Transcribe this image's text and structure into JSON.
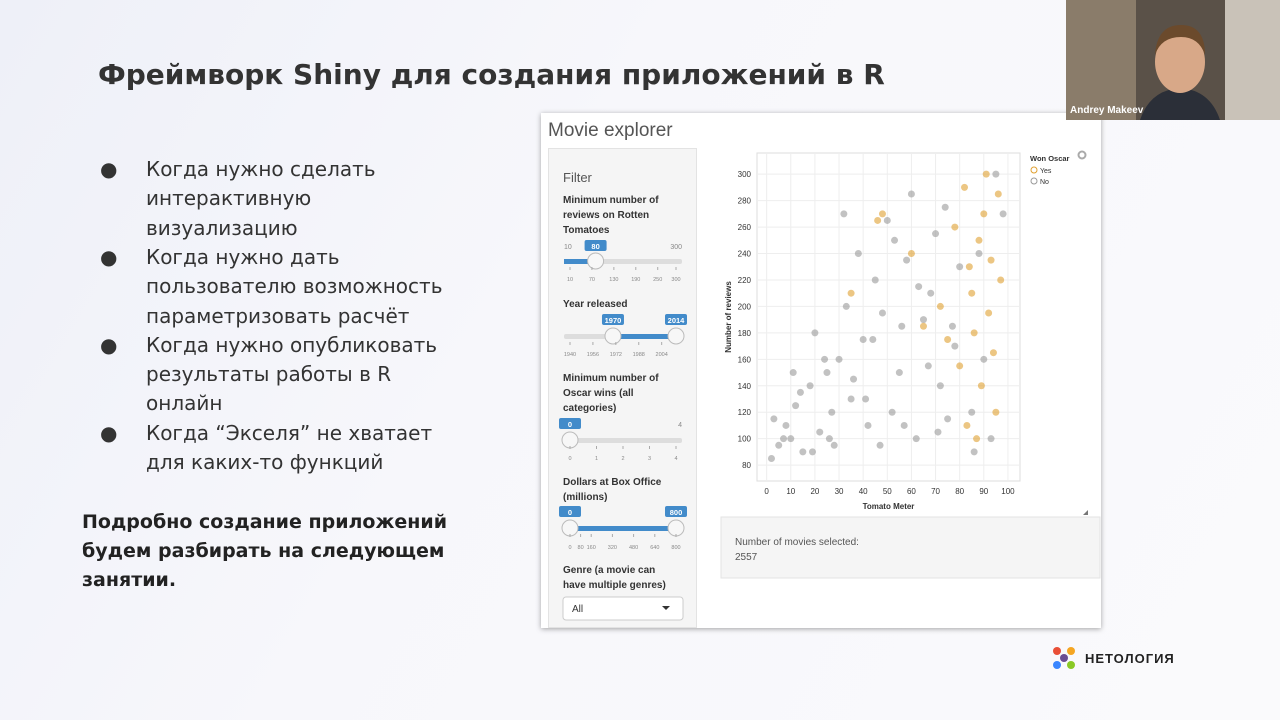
{
  "slide": {
    "title": "Фреймворк Shiny для создания приложений в R",
    "bullets": [
      {
        "lines": [
          "Когда нужно сделать",
          "интерактивную",
          "визуализацию"
        ]
      },
      {
        "lines": [
          "Когда нужно дать",
          "пользователю возможность",
          "параметризовать расчёт"
        ]
      },
      {
        "lines": [
          "Когда нужно опубликовать",
          "результаты работы в R",
          "онлайн"
        ]
      },
      {
        "lines": [
          "Когда “Экселя” не хватает",
          "для каких-то функций"
        ]
      }
    ],
    "note": [
      "Подробно создание приложений",
      "будем разбирать на следующем",
      "занятии."
    ],
    "logo": "НЕТОЛОГИЯ",
    "speaker": "Andrey Makeev"
  },
  "app": {
    "title": "Movie explorer",
    "filter_title": "Filter",
    "sliders": [
      {
        "label": "Minimum number of reviews on Rotten Tomatoes",
        "min": 10,
        "max": 300,
        "values": [
          80
        ],
        "ticks": [
          10,
          70,
          130,
          190,
          250,
          300
        ]
      },
      {
        "label": "Year released",
        "min": 1940,
        "max": 2014,
        "values": [
          1970,
          2014
        ],
        "ticks": [
          1940,
          1956,
          1972,
          1988,
          2004
        ]
      },
      {
        "label": "Minimum number of Oscar wins (all categories)",
        "min": 0,
        "max": 4,
        "values": [
          0
        ],
        "ticks": [
          0,
          1,
          2,
          3,
          4
        ]
      },
      {
        "label": "Dollars at Box Office (millions)",
        "min": 0,
        "max": 800,
        "values": [
          0,
          800
        ],
        "ticks": [
          0,
          80,
          160,
          320,
          480,
          640,
          800
        ]
      }
    ],
    "genre_label": "Genre (a movie can have multiple genres)",
    "genre_value": "All",
    "status_label": "Number of movies selected:",
    "status_value": 2557
  },
  "chart_data": {
    "type": "scatter",
    "x_label": "Tomato Meter",
    "y_label": "Number of reviews",
    "legend_title": "Won Oscar",
    "xlim": [
      -4,
      105
    ],
    "ylim": [
      68,
      316
    ],
    "xticks": [
      0,
      10,
      20,
      30,
      40,
      50,
      60,
      70,
      80,
      90,
      100
    ],
    "yticks": [
      80,
      100,
      120,
      140,
      160,
      180,
      200,
      220,
      240,
      260,
      280,
      300
    ],
    "grid": true,
    "series": [
      {
        "name": "Yes",
        "color": "#e0a030",
        "x": [
          72,
          75,
          78,
          80,
          82,
          84,
          85,
          86,
          88,
          89,
          90,
          91,
          92,
          93,
          94,
          95,
          96,
          97,
          46,
          48,
          35,
          60,
          65,
          83,
          87
        ],
        "values": [
          200,
          175,
          260,
          155,
          290,
          230,
          210,
          180,
          250,
          140,
          270,
          300,
          195,
          235,
          165,
          120,
          285,
          220,
          265,
          270,
          210,
          240,
          185,
          110,
          100
        ]
      },
      {
        "name": "No",
        "color": "#9a9a9a",
        "x": [
          2,
          5,
          8,
          10,
          12,
          15,
          18,
          20,
          22,
          25,
          28,
          30,
          32,
          35,
          38,
          40,
          42,
          45,
          48,
          50,
          52,
          55,
          58,
          60,
          62,
          65,
          68,
          70,
          72,
          75,
          78,
          80,
          3,
          7,
          14,
          19,
          24,
          27,
          33,
          36,
          44,
          47,
          53,
          57,
          63,
          67,
          74,
          77,
          85,
          88,
          90,
          93,
          95,
          98,
          11,
          26,
          41,
          56,
          71,
          86
        ],
        "values": [
          85,
          95,
          110,
          100,
          125,
          90,
          140,
          180,
          105,
          150,
          95,
          160,
          270,
          130,
          240,
          175,
          110,
          220,
          195,
          265,
          120,
          150,
          235,
          285,
          100,
          190,
          210,
          255,
          140,
          115,
          170,
          230,
          115,
          100,
          135,
          90,
          160,
          120,
          200,
          145,
          175,
          95,
          250,
          110,
          215,
          155,
          275,
          185,
          120,
          240,
          160,
          100,
          300,
          270,
          150,
          100,
          130,
          185,
          105,
          90
        ]
      }
    ]
  }
}
